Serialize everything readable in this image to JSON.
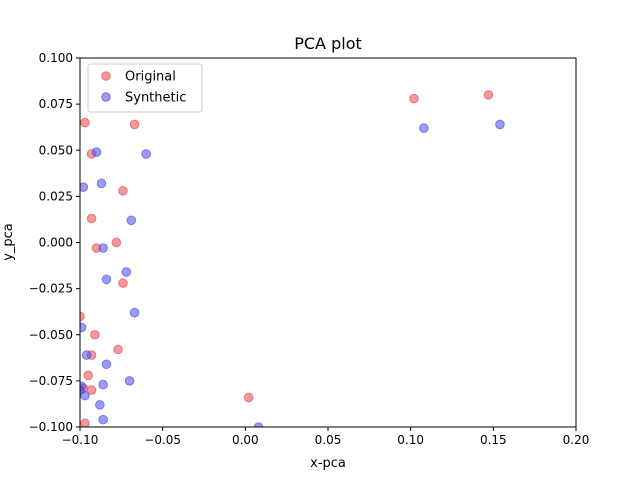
{
  "chart_data": {
    "type": "scatter",
    "title": "PCA plot",
    "xlabel": "x-pca",
    "ylabel": "y_pca",
    "xlim": [
      -0.1,
      0.2
    ],
    "ylim": [
      -0.1,
      0.1
    ],
    "xticks": [
      -0.1,
      -0.05,
      0.0,
      0.05,
      0.1,
      0.15,
      0.2
    ],
    "yticks": [
      -0.1,
      -0.075,
      -0.05,
      -0.025,
      0.0,
      0.025,
      0.05,
      0.075,
      0.1
    ],
    "xtick_labels": [
      "−0.10",
      "−0.05",
      "0.00",
      "0.05",
      "0.10",
      "0.15",
      "0.20"
    ],
    "ytick_labels": [
      "−0.100",
      "−0.075",
      "−0.050",
      "−0.025",
      "0.000",
      "0.025",
      "0.050",
      "0.075",
      "0.100"
    ],
    "grid": false,
    "legend_position": "top-left",
    "series": [
      {
        "name": "Original",
        "color": "#e8474a",
        "alpha": 0.3,
        "points": [
          [
            -0.097,
            0.065
          ],
          [
            -0.067,
            0.064
          ],
          [
            -0.093,
            0.048
          ],
          [
            -0.074,
            0.028
          ],
          [
            -0.093,
            0.013
          ],
          [
            -0.09,
            -0.003
          ],
          [
            -0.078,
            0.0
          ],
          [
            -0.074,
            -0.022
          ],
          [
            -0.091,
            -0.05
          ],
          [
            -0.077,
            -0.058
          ],
          [
            -0.093,
            -0.061
          ],
          [
            -0.095,
            -0.072
          ],
          [
            -0.093,
            -0.08
          ],
          [
            -0.097,
            -0.098
          ],
          [
            0.102,
            0.078
          ],
          [
            0.147,
            0.08
          ],
          [
            0.002,
            -0.084
          ],
          [
            -0.1,
            -0.04
          ],
          [
            -0.098,
            -0.079
          ]
        ]
      },
      {
        "name": "Synthetic",
        "color": "#4a4ae8",
        "alpha": 0.3,
        "points": [
          [
            -0.09,
            0.049
          ],
          [
            -0.06,
            0.048
          ],
          [
            -0.098,
            0.03
          ],
          [
            -0.087,
            0.032
          ],
          [
            -0.069,
            0.012
          ],
          [
            -0.086,
            -0.003
          ],
          [
            -0.072,
            -0.016
          ],
          [
            -0.084,
            -0.02
          ],
          [
            -0.067,
            -0.038
          ],
          [
            -0.099,
            -0.046
          ],
          [
            -0.096,
            -0.061
          ],
          [
            -0.084,
            -0.066
          ],
          [
            -0.07,
            -0.075
          ],
          [
            -0.086,
            -0.077
          ],
          [
            -0.099,
            -0.078
          ],
          [
            -0.097,
            -0.083
          ],
          [
            -0.088,
            -0.088
          ],
          [
            -0.086,
            -0.096
          ],
          [
            0.108,
            0.062
          ],
          [
            0.154,
            0.064
          ],
          [
            0.008,
            -0.1
          ],
          [
            -0.1,
            -0.08
          ]
        ]
      }
    ]
  }
}
